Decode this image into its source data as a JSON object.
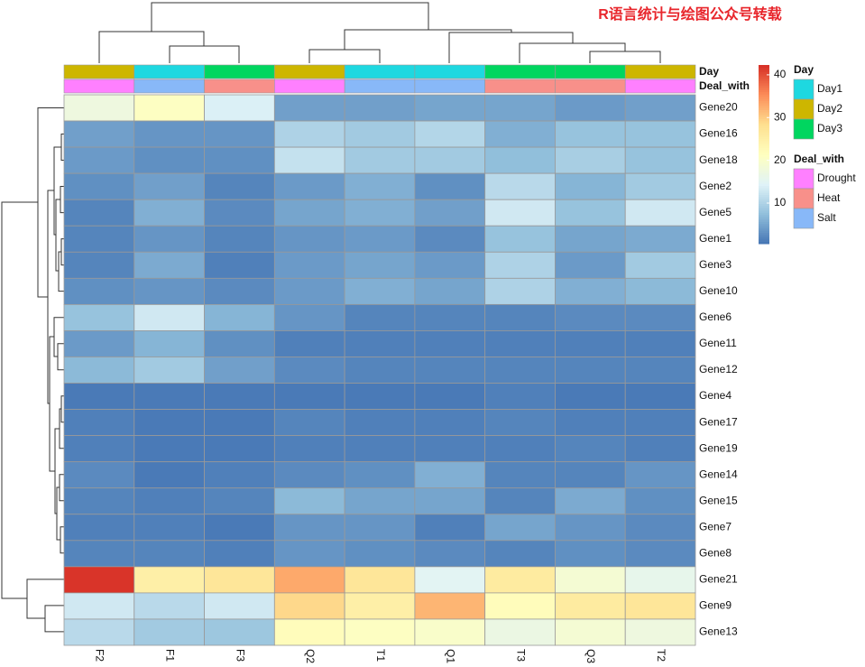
{
  "chart_data": {
    "type": "heatmap",
    "watermark": "R语言统计与绘图公众号转载",
    "columns": [
      "F2",
      "F1",
      "F3",
      "Q2",
      "T1",
      "Q1",
      "T3",
      "Q3",
      "T2"
    ],
    "rows": [
      "Gene20",
      "Gene16",
      "Gene18",
      "Gene2",
      "Gene5",
      "Gene1",
      "Gene3",
      "Gene10",
      "Gene6",
      "Gene11",
      "Gene12",
      "Gene4",
      "Gene17",
      "Gene19",
      "Gene14",
      "Gene15",
      "Gene7",
      "Gene8",
      "Gene21",
      "Gene9",
      "Gene13"
    ],
    "values": [
      [
        17.5,
        21,
        14,
        4.5,
        4.5,
        5,
        5,
        4,
        4.5
      ],
      [
        4.5,
        3.5,
        3.5,
        10,
        9,
        10.5,
        6,
        8,
        8
      ],
      [
        4,
        3,
        3,
        12,
        9,
        9,
        7.5,
        9.5,
        8
      ],
      [
        3,
        4.5,
        2,
        4,
        6,
        3,
        11,
        6.5,
        9
      ],
      [
        2,
        6,
        2.5,
        5,
        6,
        4.5,
        13,
        8,
        13
      ],
      [
        2,
        3.5,
        2,
        3.5,
        4,
        2.5,
        8,
        5,
        5.5
      ],
      [
        2,
        5.5,
        1.5,
        4,
        5,
        4,
        10,
        4,
        9
      ],
      [
        3,
        3.5,
        2.5,
        4,
        6,
        5,
        10,
        6,
        7
      ],
      [
        8,
        13,
        6.5,
        3.5,
        2,
        2,
        2,
        2.5,
        2.5
      ],
      [
        4,
        6.5,
        3,
        1.5,
        1.5,
        1.5,
        1.5,
        1.5,
        1.5
      ],
      [
        7,
        9,
        4.5,
        2.5,
        2,
        2,
        2,
        2,
        2
      ],
      [
        1,
        1,
        1,
        1,
        1,
        1,
        1.5,
        1,
        1
      ],
      [
        1.5,
        1,
        1,
        2,
        1.5,
        1.5,
        2,
        1.5,
        1.5
      ],
      [
        1.5,
        1,
        1,
        1.5,
        1.5,
        1.5,
        1.5,
        2,
        1.5
      ],
      [
        2.5,
        1,
        1.5,
        2.5,
        3,
        6,
        2,
        2,
        3.5
      ],
      [
        2,
        1.5,
        2,
        7,
        5,
        5,
        2,
        5.5,
        3
      ],
      [
        1.5,
        1.5,
        1,
        3.5,
        3.5,
        1.5,
        5,
        3.5,
        2.5
      ],
      [
        2,
        2,
        1.5,
        3.5,
        3,
        2.5,
        2,
        3,
        2.5
      ],
      [
        42,
        25,
        27,
        33,
        27,
        15,
        26,
        19,
        16
      ],
      [
        13,
        11,
        13,
        29,
        25,
        32,
        22,
        26,
        27
      ],
      [
        11,
        9,
        8.5,
        22,
        21,
        20,
        17,
        19,
        17.5
      ]
    ],
    "colorbar": {
      "lim": [
        0.5,
        42.3
      ],
      "ticks": [
        10,
        20,
        30,
        40
      ],
      "colors": [
        "#4575B4",
        "#91BFDB",
        "#E0F3F8",
        "#FFFFBF",
        "#FEE090",
        "#FC8D59",
        "#D73027"
      ]
    },
    "annotations": [
      {
        "name": "Day",
        "values": [
          "Day2",
          "Day1",
          "Day3",
          "Day2",
          "Day1",
          "Day1",
          "Day3",
          "Day3",
          "Day2"
        ],
        "legend": [
          {
            "label": "Day1",
            "color": "#1ED8E0"
          },
          {
            "label": "Day2",
            "color": "#CDB600"
          },
          {
            "label": "Day3",
            "color": "#00D65F"
          }
        ]
      },
      {
        "name": "Deal_with",
        "values": [
          "Drought",
          "Salt",
          "Heat",
          "Drought",
          "Salt",
          "Salt",
          "Heat",
          "Heat",
          "Drought"
        ],
        "legend": [
          {
            "label": "Drought",
            "color": "#FF80FF"
          },
          {
            "label": "Heat",
            "color": "#F8908A"
          },
          {
            "label": "Salt",
            "color": "#88B8F8"
          }
        ]
      }
    ]
  }
}
